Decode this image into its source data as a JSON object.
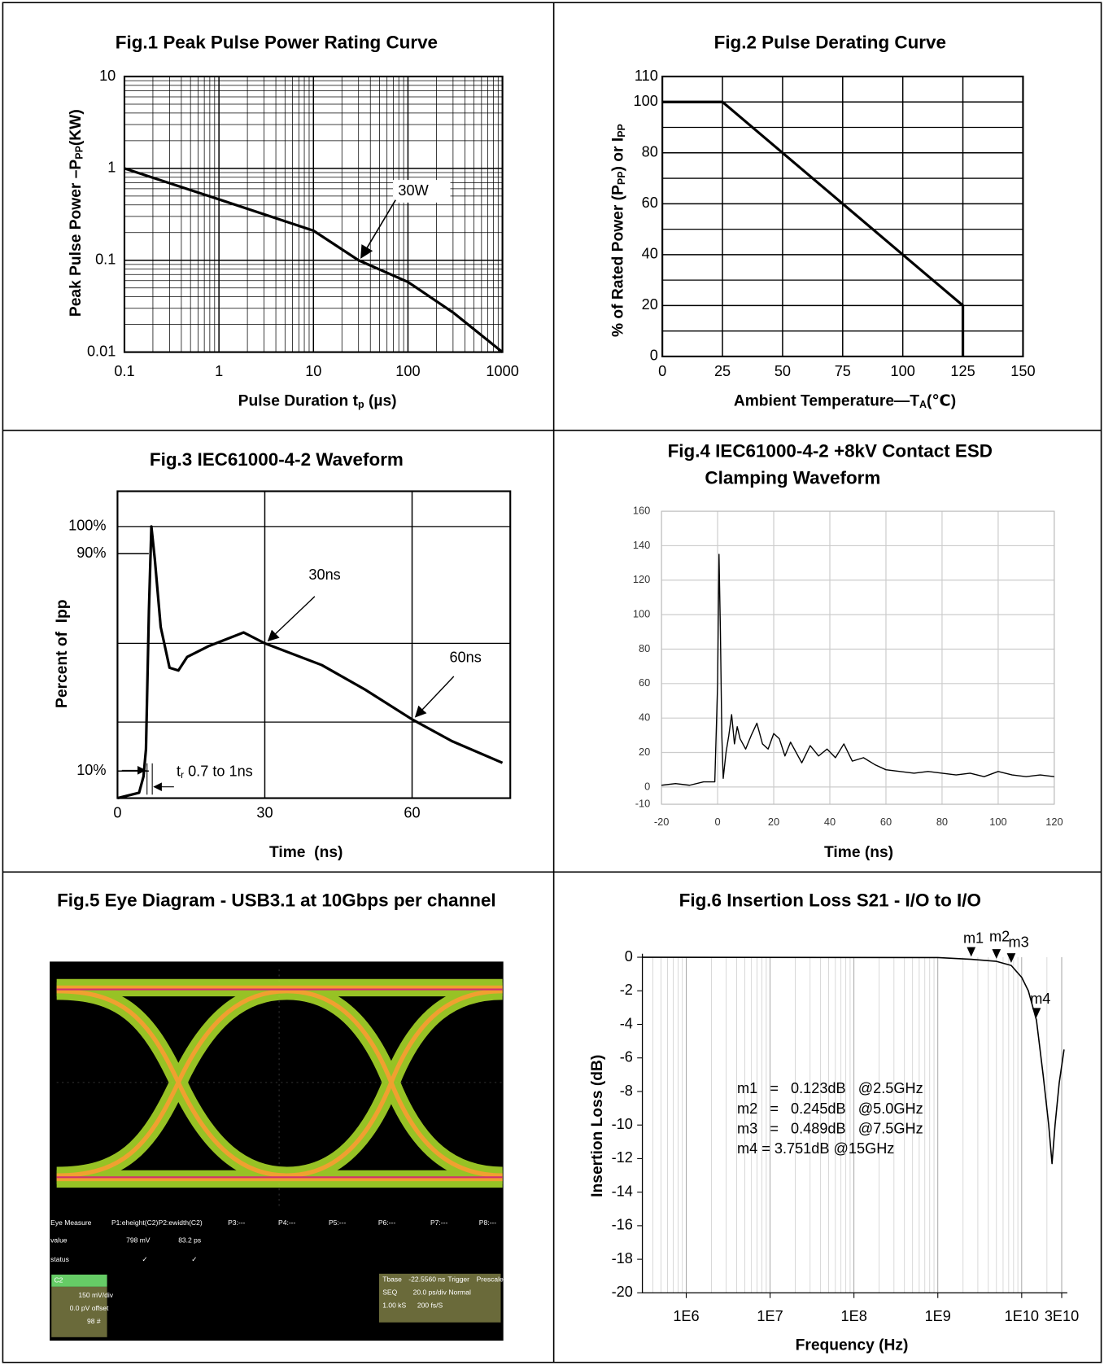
{
  "chart_data": [
    {
      "type": "line",
      "title": "Fig.1 Peak Pulse Power Rating Curve",
      "xlabel": [
        "Pulse Duration t",
        "p",
        " (µs)"
      ],
      "ylabel": [
        "Peak Pulse Power –P",
        "PP",
        "(KW)"
      ],
      "xscale": "log",
      "yscale": "log",
      "xlim": [
        0.1,
        1000
      ],
      "ylim": [
        0.01,
        10
      ],
      "xticks": [
        0.1,
        1,
        10,
        100,
        1000
      ],
      "yticks": [
        0.01,
        0.1,
        1,
        10
      ],
      "grid": true,
      "minor_grid": true,
      "grid_color": "#000000",
      "color": "#000000",
      "x": [
        0.1,
        1,
        10,
        30,
        100,
        300,
        1000
      ],
      "values": [
        1,
        0.46,
        0.21,
        0.1,
        0.058,
        0.027,
        0.01
      ],
      "annotations": [
        {
          "text": "30W",
          "x": 30,
          "y": 0.1
        }
      ]
    },
    {
      "type": "line",
      "title": "Fig.2 Pulse Derating Curve",
      "xlabel": [
        "Ambient Temperature—T",
        "A",
        "(℃)"
      ],
      "ylabel": [
        "% of Rated Power (P",
        "PP",
        ") or I",
        "PP"
      ],
      "xlim": [
        0,
        150
      ],
      "ylim": [
        0,
        110
      ],
      "xticks": [
        0,
        25,
        50,
        75,
        100,
        125,
        150
      ],
      "yticks": [
        0,
        20,
        40,
        60,
        80,
        100,
        110
      ],
      "ygrid": [
        10,
        30,
        50,
        70,
        90
      ],
      "grid": true,
      "grid_color": "#000000",
      "color": "#000000",
      "x": [
        0,
        25,
        125,
        125
      ],
      "values": [
        100,
        100,
        20,
        0
      ]
    },
    {
      "type": "line",
      "title": "Fig.3 IEC61000-4-2 Waveform",
      "xlabel": "Time  (ns)",
      "ylabel": "Percent of  Ipp",
      "xlim": [
        0,
        80
      ],
      "ylim": [
        0,
        113
      ],
      "xticks": [
        0,
        30,
        60
      ],
      "yticks": [
        {
          "value": 100,
          "label": "100%"
        },
        {
          "value": 90,
          "label": "90%"
        },
        {
          "value": 10,
          "label": "10%"
        }
      ],
      "ygrid": [
        100,
        57,
        28
      ],
      "grid": true,
      "grid_color": "#000000",
      "color": "#000000",
      "x": [
        0,
        4.4,
        5.3,
        5.8,
        6.4,
        6.9,
        7.6,
        8.8,
        10.6,
        12.4,
        14.2,
        18.6,
        25.7,
        30,
        41.6,
        50.4,
        60,
        68.1,
        78.4
      ],
      "values": [
        0,
        2,
        8,
        18,
        69,
        100,
        88,
        63,
        48,
        47,
        52,
        56,
        61,
        57,
        49,
        40,
        29,
        21,
        13
      ],
      "annotations": [
        {
          "text": "30ns",
          "x": 30,
          "y": 57
        },
        {
          "text": "60ns",
          "x": 60,
          "y": 29
        }
      ],
      "rise_note": [
        "t",
        "r",
        " 0.7 to 1ns"
      ]
    },
    {
      "type": "line",
      "title": [
        "Fig.4 IEC61000-4-2 +8kV Contact ESD",
        "Clamping Waveform"
      ],
      "xlabel": "Time (ns)",
      "xlim": [
        -20,
        120
      ],
      "ylim": [
        -10,
        160
      ],
      "xticks": [
        -20,
        0,
        20,
        40,
        60,
        80,
        100,
        120
      ],
      "yticks": [
        -10,
        0,
        20,
        40,
        60,
        80,
        100,
        120,
        140,
        160
      ],
      "grid": true,
      "grid_color": "#cccccc",
      "color": "#000000",
      "x": [
        -20,
        -15,
        -10,
        -5,
        -1,
        0,
        0.5,
        1,
        1.5,
        2,
        3,
        4,
        5,
        6,
        7,
        8,
        10,
        12,
        14,
        16,
        18,
        20,
        22,
        24,
        26,
        28,
        30,
        33,
        36,
        39,
        42,
        45,
        48,
        52,
        56,
        60,
        65,
        70,
        75,
        80,
        85,
        90,
        95,
        100,
        105,
        110,
        115,
        120
      ],
      "values": [
        1,
        2,
        1,
        3,
        3,
        60,
        135,
        90,
        30,
        5,
        20,
        30,
        42,
        25,
        35,
        28,
        22,
        30,
        37,
        25,
        22,
        31,
        28,
        18,
        26,
        20,
        14,
        24,
        18,
        22,
        17,
        25,
        15,
        17,
        13,
        10,
        9,
        8,
        9,
        8,
        7,
        8,
        6,
        9,
        7,
        6,
        7,
        6
      ]
    },
    {
      "type": "eye",
      "title": "Fig.5 Eye Diagram - USB3.1 at 10Gbps per channel",
      "screen_texts": [
        "Eye Measure",
        "P1:eheight(C2)",
        "P2:ewidth(C2)",
        "P3:---",
        "P4:---",
        "P5:---",
        "P6:---",
        "P7:---",
        "P8:---",
        "value",
        "798 mV",
        "83.2 ps",
        "status",
        "✓",
        "✓",
        "C2",
        "150 mV/div",
        "0.0 pV offset",
        "98 #",
        "Tbase",
        "-22.5560 ns",
        "Trigger",
        "Prescaler",
        "SEQ",
        "20.0 ps/div",
        "Normal",
        "1.00 kS",
        "200 fs/S"
      ]
    },
    {
      "type": "line",
      "title": "Fig.6 Insertion Loss S21 - I/O to I/O",
      "xlabel": "Frequency (Hz)",
      "ylabel": "Insertion Loss (dB)",
      "xscale": "log",
      "xlim": [
        300000,
        35000000000
      ],
      "ylim": [
        -20,
        0
      ],
      "xticks": [
        {
          "value": 1000000,
          "label": "1E6"
        },
        {
          "value": 10000000,
          "label": "1E7"
        },
        {
          "value": 100000000,
          "label": "1E8"
        },
        {
          "value": 1000000000,
          "label": "1E9"
        },
        {
          "value": 10000000000,
          "label": "1E10"
        },
        {
          "value": 30000000000,
          "label": "3E10"
        }
      ],
      "yticks": [
        0,
        -2,
        -4,
        -6,
        -8,
        -10,
        -12,
        -14,
        -16,
        -18,
        -20
      ],
      "grid": "x",
      "minor_grid": true,
      "grid_color": "#cccccc",
      "color": "#000000",
      "x": [
        300000,
        1000000000,
        2500000000,
        5000000000,
        7500000000,
        10000000000,
        12000000000,
        15000000000,
        18000000000,
        21000000000,
        23000000000,
        25000000000,
        28000000000,
        32000000000
      ],
      "values": [
        0,
        -0.02,
        -0.123,
        -0.245,
        -0.489,
        -1.2,
        -2,
        -3.751,
        -7,
        -10,
        -12.3,
        -10,
        -7.5,
        -5.5
      ],
      "markers": [
        {
          "label": "m1",
          "x": 2500000000,
          "y": -0.123
        },
        {
          "label": "m2",
          "x": 5000000000,
          "y": -0.245
        },
        {
          "label": "m3",
          "x": 7500000000,
          "y": -0.489
        },
        {
          "label": "m4",
          "x": 15000000000,
          "y": -3.751
        }
      ],
      "annotation_lines": [
        "m1   =   0.123dB   @2.5GHz",
        "m2   =   0.245dB   @5.0GHz",
        "m3   =   0.489dB   @7.5GHz",
        "m4 = 3.751dB @15GHz"
      ]
    }
  ]
}
